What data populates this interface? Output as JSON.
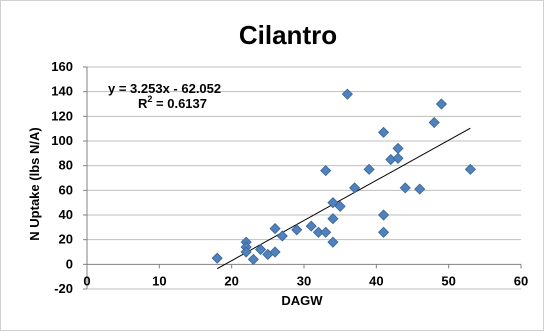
{
  "chart_data": {
    "type": "scatter",
    "title": "Cilantro",
    "xlabel": "DAGW",
    "ylabel": "N Uptake (lbs N/A)",
    "xlim": [
      0,
      60
    ],
    "ylim": [
      -20,
      160
    ],
    "xticks": [
      "0",
      "10",
      "20",
      "30",
      "40",
      "50",
      "60"
    ],
    "yticks": [
      "-20",
      "0",
      "20",
      "40",
      "60",
      "80",
      "100",
      "120",
      "140",
      "160"
    ],
    "grid": true,
    "legend": "none",
    "marker_color": "#4f81bd",
    "series": [
      {
        "points": [
          {
            "x": 18,
            "y": 5
          },
          {
            "x": 22,
            "y": 18
          },
          {
            "x": 22,
            "y": 14
          },
          {
            "x": 22,
            "y": 10
          },
          {
            "x": 23,
            "y": 4
          },
          {
            "x": 24,
            "y": 12
          },
          {
            "x": 25,
            "y": 8
          },
          {
            "x": 26,
            "y": 10
          },
          {
            "x": 26,
            "y": 29
          },
          {
            "x": 27,
            "y": 23
          },
          {
            "x": 29,
            "y": 28
          },
          {
            "x": 31,
            "y": 31
          },
          {
            "x": 32,
            "y": 26
          },
          {
            "x": 33,
            "y": 26
          },
          {
            "x": 33,
            "y": 76
          },
          {
            "x": 34,
            "y": 50
          },
          {
            "x": 34,
            "y": 37
          },
          {
            "x": 34,
            "y": 18
          },
          {
            "x": 35,
            "y": 47
          },
          {
            "x": 36,
            "y": 138
          },
          {
            "x": 37,
            "y": 62
          },
          {
            "x": 39,
            "y": 77
          },
          {
            "x": 41,
            "y": 107
          },
          {
            "x": 41,
            "y": 40
          },
          {
            "x": 41,
            "y": 26
          },
          {
            "x": 42,
            "y": 85
          },
          {
            "x": 43,
            "y": 86
          },
          {
            "x": 43,
            "y": 94
          },
          {
            "x": 44,
            "y": 62
          },
          {
            "x": 46,
            "y": 61
          },
          {
            "x": 48,
            "y": 115
          },
          {
            "x": 49,
            "y": 130
          },
          {
            "x": 53,
            "y": 77
          }
        ]
      }
    ],
    "trendline": {
      "slope": 3.253,
      "intercept": -62.052,
      "x_range": [
        18,
        53
      ],
      "equation": "y = 3.253x - 62.052",
      "r2_label": "R",
      "r2_sup": "2",
      "r2_value": " = 0.6137"
    }
  }
}
